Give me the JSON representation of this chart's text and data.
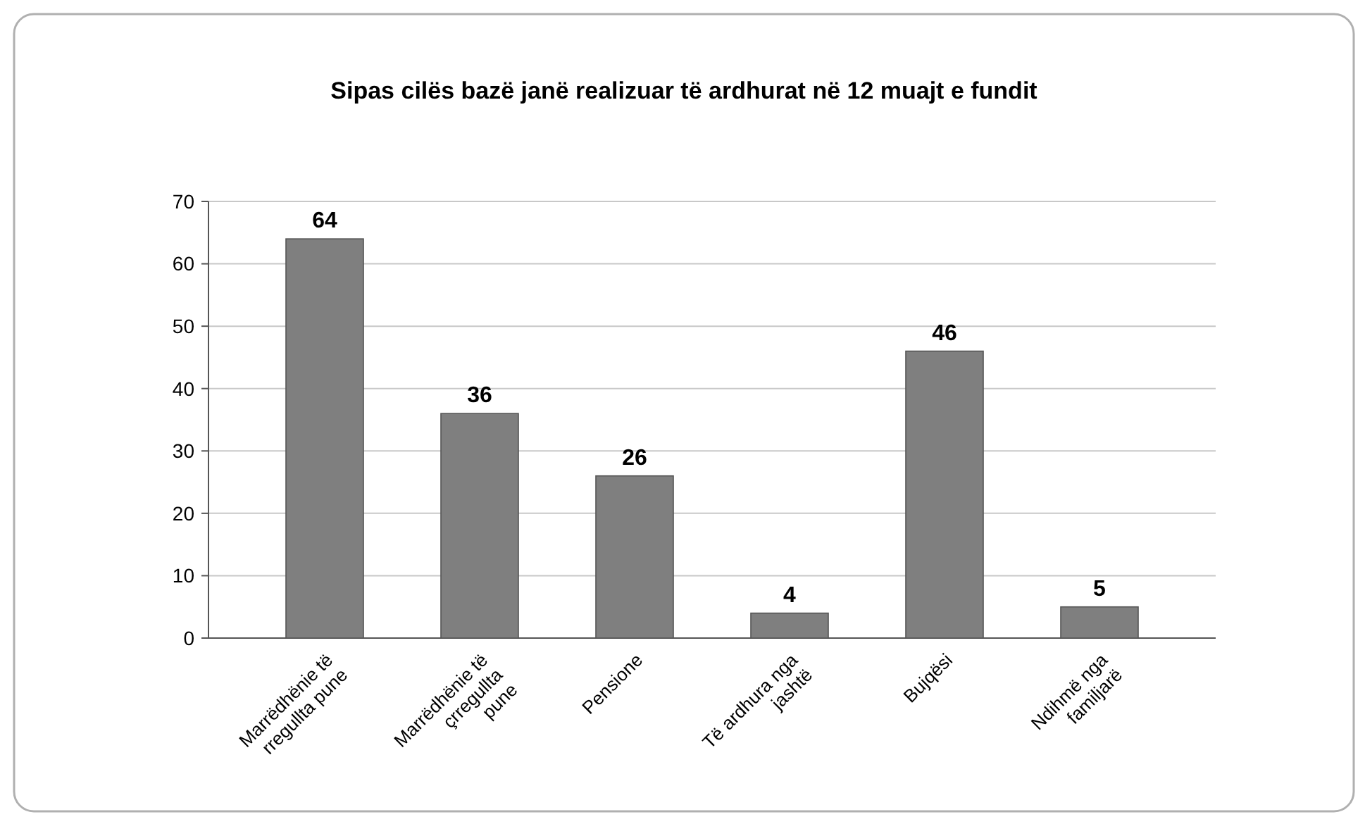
{
  "chart_data": {
    "type": "bar",
    "title": "Sipas cilës bazë janë realizuar të ardhurat në 12 muajt e fundit",
    "categories": [
      "Marrëdhënie të rregullta pune",
      "Marrëdhënie të çrregullta pune",
      "Pensione",
      "Të ardhura nga jashtë",
      "Bujqësi",
      "Ndihmë nga familjarë"
    ],
    "values": [
      64,
      36,
      26,
      4,
      46,
      5
    ],
    "color": "#7f7f7f",
    "ylim": [
      0,
      70
    ],
    "yticks": [
      0,
      10,
      20,
      30,
      40,
      50,
      60,
      70
    ],
    "grid": "y",
    "data_labels": true
  }
}
